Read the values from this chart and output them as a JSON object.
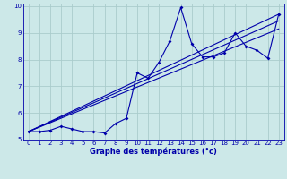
{
  "title": "Graphe des températures (°c)",
  "bg_color": "#cce8e8",
  "grid_color": "#aacccc",
  "line_color": "#0000aa",
  "xlim": [
    -0.5,
    23.5
  ],
  "ylim": [
    5,
    10.1
  ],
  "xticks": [
    0,
    1,
    2,
    3,
    4,
    5,
    6,
    7,
    8,
    9,
    10,
    11,
    12,
    13,
    14,
    15,
    16,
    17,
    18,
    19,
    20,
    21,
    22,
    23
  ],
  "yticks": [
    5,
    6,
    7,
    8,
    9,
    10
  ],
  "series1": [
    [
      0,
      5.3
    ],
    [
      1,
      5.3
    ],
    [
      2,
      5.35
    ],
    [
      3,
      5.5
    ],
    [
      4,
      5.4
    ],
    [
      5,
      5.3
    ],
    [
      6,
      5.3
    ],
    [
      7,
      5.25
    ],
    [
      8,
      5.6
    ],
    [
      9,
      5.8
    ],
    [
      10,
      7.5
    ],
    [
      11,
      7.3
    ],
    [
      12,
      7.9
    ],
    [
      13,
      8.7
    ],
    [
      14,
      9.95
    ],
    [
      15,
      8.6
    ],
    [
      16,
      8.1
    ],
    [
      17,
      8.1
    ],
    [
      18,
      8.25
    ],
    [
      19,
      9.0
    ],
    [
      20,
      8.5
    ],
    [
      21,
      8.35
    ],
    [
      22,
      8.05
    ],
    [
      23,
      9.7
    ]
  ],
  "trend_lines": [
    [
      [
        0,
        5.3
      ],
      [
        23,
        9.7
      ]
    ],
    [
      [
        0,
        5.3
      ],
      [
        23,
        9.45
      ]
    ],
    [
      [
        0,
        5.3
      ],
      [
        23,
        9.15
      ]
    ]
  ]
}
